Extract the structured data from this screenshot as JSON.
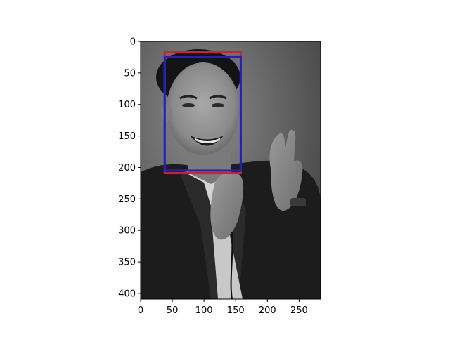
{
  "chart_data": {
    "type": "image",
    "title": "",
    "xlabel": "",
    "ylabel": "",
    "image_width": 284,
    "image_height": 409,
    "xlim": [
      0,
      284
    ],
    "ylim": [
      409,
      0
    ],
    "y_inverted": true,
    "grid": false,
    "legend": "none",
    "xticks": [
      0,
      50,
      100,
      150,
      200,
      250
    ],
    "yticks": [
      0,
      50,
      100,
      150,
      200,
      250,
      300,
      350,
      400
    ],
    "xtick_labels": [
      "0",
      "50",
      "100",
      "150",
      "200",
      "250"
    ],
    "ytick_labels": [
      "0",
      "50",
      "100",
      "150",
      "200",
      "250",
      "300",
      "350",
      "400"
    ],
    "image_content": "grayscale photo of a smiling man clapping his hands",
    "boxes": [
      {
        "color": "#d62020",
        "x_min": 38,
        "y_min": 17,
        "x_max": 158,
        "y_max": 209
      },
      {
        "color": "#2020c8",
        "x_min": 38,
        "y_min": 25,
        "x_max": 158,
        "y_max": 205
      }
    ]
  }
}
